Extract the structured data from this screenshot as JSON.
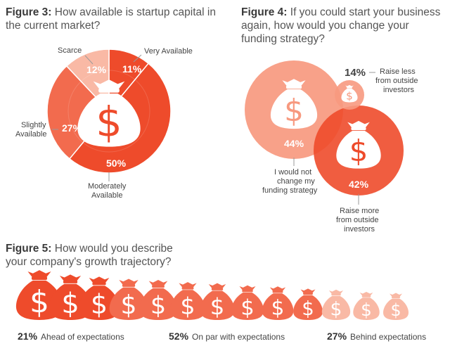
{
  "figure3": {
    "label": "Figure 3:",
    "question_line1": "How available is startup capital in",
    "question_line2": "the current market?",
    "labels": {
      "very": "Very Available",
      "scarce": "Scarce",
      "slightly_1": "Slightly",
      "slightly_2": "Available",
      "moderately_1": "Moderately",
      "moderately_2": "Available"
    }
  },
  "figure4": {
    "label": "Figure 4:",
    "question_line1": "If you could start your business",
    "question_line2": "again, how would you change your",
    "question_line3": "funding strategy?",
    "labels": {
      "less_1": "Raise less",
      "less_2": "from outside",
      "less_3": "investors",
      "nochange_1": "I would not",
      "nochange_2": "change my",
      "nochange_3": "funding strategy",
      "more_1": "Raise more",
      "more_2": "from outside",
      "more_3": "investors"
    }
  },
  "figure5": {
    "label": "Figure 5:",
    "question_line1": "How would you describe",
    "question_line2": "your company's growth trajectory?",
    "legend": [
      {
        "pct": "21%",
        "text": "Ahead of expectations"
      },
      {
        "pct": "52%",
        "text": "On par with expectations"
      },
      {
        "pct": "27%",
        "text": "Behind expectations"
      }
    ]
  },
  "colors": {
    "dark": "#ee4b2b",
    "mid": "#f26b4e",
    "light": "#f7997f",
    "pale": "#f9b9a5"
  },
  "chart_data": [
    {
      "type": "pie",
      "categories": [
        "Very Available",
        "Moderately Available",
        "Slightly Available",
        "Scarce"
      ],
      "values": [
        11,
        50,
        27,
        12
      ],
      "labels": [
        "11%",
        "50%",
        "27%",
        "12%"
      ]
    },
    {
      "type": "bubble",
      "categories": [
        "Raise less from outside investors",
        "I would not change my funding strategy",
        "Raise more from outside investors"
      ],
      "values": [
        14,
        44,
        42
      ],
      "labels": [
        "14%",
        "44%",
        "42%"
      ]
    },
    {
      "type": "bar",
      "categories": [
        "Ahead of expectations",
        "On par with expectations",
        "Behind expectations"
      ],
      "values": [
        21,
        52,
        27
      ]
    }
  ]
}
